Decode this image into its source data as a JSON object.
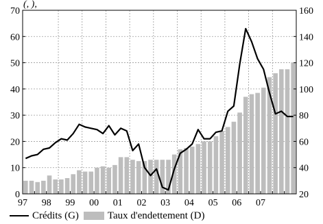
{
  "chart_data": {
    "type": "bar+line",
    "top_text": "(, ),",
    "x_tick_labels": [
      "97",
      "98",
      "99",
      "00",
      "01",
      "02",
      "03",
      "04",
      "05",
      "06",
      "07"
    ],
    "left_axis": {
      "ylim": [
        0,
        70
      ],
      "ticks": [
        "0",
        "10",
        "20",
        "30",
        "40",
        "50",
        "60",
        "70"
      ]
    },
    "right_axis": {
      "ylim": [
        20,
        160
      ],
      "ticks": [
        "20",
        "40",
        "60",
        "80",
        "100",
        "120",
        "140",
        "160"
      ]
    },
    "grid": true,
    "legend_position": "bottom",
    "x_start": "1996-Q3",
    "series": [
      {
        "name": "Crédits (G)",
        "kind": "line",
        "axis": "left",
        "color": "#000000",
        "values": [
          13.5,
          14.5,
          15,
          17,
          17.5,
          19.5,
          21,
          20.5,
          23,
          26.5,
          25.5,
          25,
          24.5,
          23,
          26,
          22.5,
          25,
          24,
          16.5,
          19,
          10,
          7,
          9.5,
          2.5,
          1.5,
          9.5,
          15.5,
          17,
          19,
          24.5,
          21,
          21,
          23.5,
          24,
          31.5,
          33.5,
          49.5,
          63,
          58,
          51.5,
          47.5,
          38.5,
          30.5,
          31.5,
          29.5,
          29.5
        ]
      },
      {
        "name": "Taux d'endettement (D)",
        "kind": "bar",
        "axis": "right",
        "color": "#bdbdbd",
        "values": [
          30,
          30,
          29,
          30,
          34,
          31,
          31,
          32,
          35,
          38,
          37,
          37,
          40,
          41,
          40,
          42,
          48,
          48,
          46,
          45,
          45,
          46,
          46,
          46,
          46,
          50,
          54,
          55,
          56,
          58,
          60,
          60,
          64,
          68,
          71,
          75,
          82,
          94,
          96,
          97,
          101,
          109,
          112,
          115,
          115,
          120
        ]
      }
    ]
  }
}
